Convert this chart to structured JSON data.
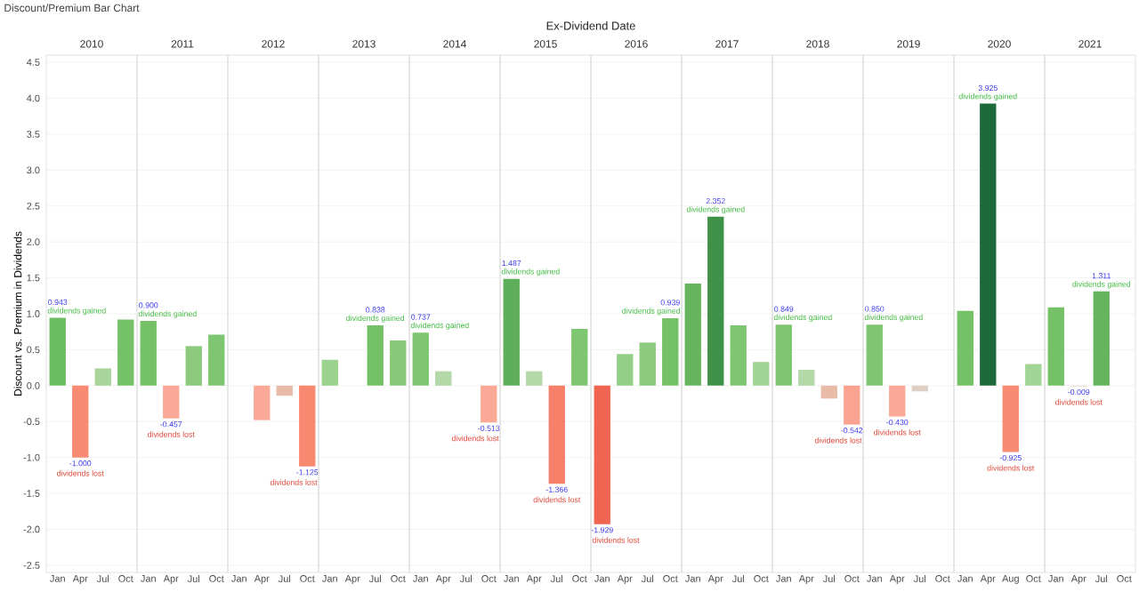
{
  "chart_data": [
    {
      "type": "bar",
      "title": "2010",
      "ylabel": "Discount vs. Premium in Dividends",
      "annotations": [
        "Discount/Premium Bar Chart",
        "Ex-Dividend Date",
        {
          "text": "dividends gained",
          "x": "Jan",
          "y": 0.943
        },
        {
          "text": "dividends lost",
          "x": "Apr",
          "y": -1.0
        }
      ],
      "categories": [
        "Jan",
        "Apr",
        "Jul",
        "Oct"
      ],
      "values": [
        0.943,
        -1.0,
        0.24,
        0.92
      ],
      "colors": [
        "#6dbd62",
        "#f98b74",
        "#a9d59d",
        "#74c167"
      ],
      "value_labels": [
        "0.943",
        "-1.000",
        null,
        null
      ],
      "ylim": [
        -2.6,
        4.6
      ],
      "yticks": [
        {
          "value": -2.5,
          "label": "-2.5"
        },
        {
          "value": -2,
          "label": "-2.0"
        },
        {
          "value": -1.5,
          "label": "-1.5"
        },
        {
          "value": -1,
          "label": "-1.0"
        },
        {
          "value": -0.5,
          "label": "-0.5"
        },
        {
          "value": 0,
          "label": "0.0"
        },
        {
          "value": 0.5,
          "label": "0.5"
        },
        {
          "value": 1,
          "label": "1.0"
        },
        {
          "value": 1.5,
          "label": "1.5"
        },
        {
          "value": 2,
          "label": "2.0"
        },
        {
          "value": 2.5,
          "label": "2.5"
        },
        {
          "value": 3,
          "label": "3.0"
        },
        {
          "value": 3.5,
          "label": "3.5"
        },
        {
          "value": 4,
          "label": "4.0"
        },
        {
          "value": 4.5,
          "label": "4.5"
        }
      ],
      "grid": "y"
    },
    {
      "type": "bar",
      "title": "2011",
      "annotations": [
        {
          "text": "dividends gained",
          "x": "Jan",
          "y": 0.9
        },
        {
          "text": "dividends lost",
          "x": "Apr",
          "y": -0.457
        }
      ],
      "categories": [
        "Jan",
        "Apr",
        "Jul",
        "Oct"
      ],
      "values": [
        0.9,
        -0.457,
        0.55,
        0.71
      ],
      "colors": [
        "#74c167",
        "#fba897",
        "#8ccb7e",
        "#7fc672"
      ],
      "value_labels": [
        "0.900",
        "-0.457",
        null,
        null
      ],
      "ylim": [
        -2.6,
        4.6
      ],
      "yticks": [
        -2.5,
        -2,
        -1.5,
        -1,
        -0.5,
        0,
        0.5,
        1,
        1.5,
        2,
        2.5,
        3,
        3.5,
        4,
        4.5
      ],
      "tick_labels": "x",
      "grid": "y"
    },
    {
      "type": "bar",
      "title": "2012",
      "annotations": [
        {
          "text": "dividends lost",
          "x": "Oct",
          "y": -1.125
        }
      ],
      "categories": [
        "Jan",
        "Apr",
        "Jul",
        "Oct"
      ],
      "values": [
        null,
        -0.48,
        -0.14,
        -1.125
      ],
      "colors": [
        "#e6d3c8",
        "#fba897",
        "#e8bba8",
        "#f98870"
      ],
      "value_labels": [
        null,
        null,
        null,
        "-1.125"
      ],
      "ylim": [
        -2.6,
        4.6
      ],
      "yticks": [
        -2.5,
        -2,
        -1.5,
        -1,
        -0.5,
        0,
        0.5,
        1,
        1.5,
        2,
        2.5,
        3,
        3.5,
        4,
        4.5
      ],
      "tick_labels": "x",
      "grid": "y"
    },
    {
      "type": "bar",
      "title": "2013",
      "annotations": [
        {
          "text": "dividends gained",
          "x": "Jul",
          "y": 0.838
        }
      ],
      "categories": [
        "Jan",
        "Apr",
        "Jul",
        "Oct"
      ],
      "values": [
        0.36,
        null,
        0.838,
        0.63
      ],
      "colors": [
        "#9ad28e",
        "#d8ead2",
        "#74c167",
        "#86c979"
      ],
      "value_labels": [
        null,
        null,
        "0.838",
        null
      ],
      "ylim": [
        -2.6,
        4.6
      ],
      "yticks": [
        -2.5,
        -2,
        -1.5,
        -1,
        -0.5,
        0,
        0.5,
        1,
        1.5,
        2,
        2.5,
        3,
        3.5,
        4,
        4.5
      ],
      "tick_labels": "x",
      "grid": "y"
    },
    {
      "type": "bar",
      "title": "2014",
      "annotations": [
        {
          "text": "dividends gained",
          "x": "Jan",
          "y": 0.737
        },
        {
          "text": "dividends lost",
          "x": "Oct",
          "y": -0.513
        }
      ],
      "categories": [
        "Jan",
        "Apr",
        "Jul",
        "Oct"
      ],
      "values": [
        0.737,
        0.2,
        null,
        -0.513
      ],
      "colors": [
        "#7fc672",
        "#b2d9a7",
        "#c9e3c0",
        "#fba897"
      ],
      "value_labels": [
        "0.737",
        null,
        null,
        "-0.513"
      ],
      "ylim": [
        -2.6,
        4.6
      ],
      "yticks": [
        -2.5,
        -2,
        -1.5,
        -1,
        -0.5,
        0,
        0.5,
        1,
        1.5,
        2,
        2.5,
        3,
        3.5,
        4,
        4.5
      ],
      "tick_labels": "x",
      "grid": "y"
    },
    {
      "type": "bar",
      "title": "2015",
      "annotations": [
        {
          "text": "dividends gained",
          "x": "Jan",
          "y": 1.487
        },
        {
          "text": "dividends lost",
          "x": "Jul",
          "y": -1.366
        }
      ],
      "categories": [
        "Jan",
        "Apr",
        "Jul",
        "Oct"
      ],
      "values": [
        1.487,
        0.2,
        -1.366,
        0.79
      ],
      "colors": [
        "#5fae5a",
        "#b2d9a7",
        "#f7806a",
        "#7fc672"
      ],
      "value_labels": [
        "1.487",
        null,
        "-1.366",
        null
      ],
      "ylim": [
        -2.6,
        4.6
      ],
      "yticks": [
        -2.5,
        -2,
        -1.5,
        -1,
        -0.5,
        0,
        0.5,
        1,
        1.5,
        2,
        2.5,
        3,
        3.5,
        4,
        4.5
      ],
      "tick_labels": "x",
      "grid": "y"
    },
    {
      "type": "bar",
      "title": "2016",
      "annotations": [
        {
          "text": "dividends lost",
          "x": "Jan",
          "y": -1.929
        },
        {
          "text": "dividends gained",
          "x": "Oct",
          "y": 0.939
        }
      ],
      "categories": [
        "Jan",
        "Apr",
        "Jul",
        "Oct"
      ],
      "values": [
        -1.929,
        0.44,
        0.6,
        0.939
      ],
      "colors": [
        "#f06452",
        "#94cf88",
        "#8ccb7e",
        "#74c167"
      ],
      "value_labels": [
        "-1.929",
        null,
        null,
        "0.939"
      ],
      "ylim": [
        -2.6,
        4.6
      ],
      "yticks": [
        -2.5,
        -2,
        -1.5,
        -1,
        -0.5,
        0,
        0.5,
        1,
        1.5,
        2,
        2.5,
        3,
        3.5,
        4,
        4.5
      ],
      "tick_labels": "x",
      "grid": "y"
    },
    {
      "type": "bar",
      "title": "2017",
      "annotations": [
        {
          "text": "dividends gained",
          "x": "Apr",
          "y": 2.352
        }
      ],
      "categories": [
        "Jan",
        "Apr",
        "Jul",
        "Oct"
      ],
      "values": [
        1.42,
        2.352,
        0.84,
        0.33
      ],
      "colors": [
        "#66b55e",
        "#3f9247",
        "#7fc672",
        "#a1d495"
      ],
      "value_labels": [
        null,
        "2.352",
        null,
        null
      ],
      "ylim": [
        -2.6,
        4.6
      ],
      "yticks": [
        -2.5,
        -2,
        -1.5,
        -1,
        -0.5,
        0,
        0.5,
        1,
        1.5,
        2,
        2.5,
        3,
        3.5,
        4,
        4.5
      ],
      "tick_labels": "x",
      "grid": "y"
    },
    {
      "type": "bar",
      "title": "2018",
      "annotations": [
        {
          "text": "dividends gained",
          "x": "Jan",
          "y": 0.849
        },
        {
          "text": "dividends lost",
          "x": "Oct",
          "y": -0.542
        }
      ],
      "categories": [
        "Jan",
        "Apr",
        "Jul",
        "Oct"
      ],
      "values": [
        0.849,
        0.22,
        -0.18,
        -0.542
      ],
      "colors": [
        "#7fc672",
        "#b2d9a7",
        "#e8bba8",
        "#fba391"
      ],
      "value_labels": [
        "0.849",
        null,
        null,
        "-0.542"
      ],
      "ylim": [
        -2.6,
        4.6
      ],
      "yticks": [
        -2.5,
        -2,
        -1.5,
        -1,
        -0.5,
        0,
        0.5,
        1,
        1.5,
        2,
        2.5,
        3,
        3.5,
        4,
        4.5
      ],
      "tick_labels": "x",
      "grid": "y"
    },
    {
      "type": "bar",
      "title": "2019",
      "annotations": [
        {
          "text": "dividends gained",
          "x": "Jan",
          "y": 0.85
        },
        {
          "text": "dividends lost",
          "x": "Apr",
          "y": -0.43
        }
      ],
      "categories": [
        "Jan",
        "Apr",
        "Jul",
        "Oct"
      ],
      "values": [
        0.85,
        -0.43,
        -0.08,
        null
      ],
      "colors": [
        "#7fc672",
        "#fba897",
        "#e0cfc3",
        "#cde6c5"
      ],
      "value_labels": [
        "0.850",
        "-0.430",
        null,
        null
      ],
      "ylim": [
        -2.6,
        4.6
      ],
      "yticks": [
        -2.5,
        -2,
        -1.5,
        -1,
        -0.5,
        0,
        0.5,
        1,
        1.5,
        2,
        2.5,
        3,
        3.5,
        4,
        4.5
      ],
      "tick_labels": "x",
      "grid": "y"
    },
    {
      "type": "bar",
      "title": "2020",
      "annotations": [
        {
          "text": "dividends gained",
          "x": "Apr",
          "y": 3.925
        },
        {
          "text": "dividends lost",
          "x": "Aug",
          "y": -0.925
        }
      ],
      "categories": [
        "Jan",
        "Apr",
        "Aug",
        "Oct"
      ],
      "values": [
        1.04,
        3.925,
        -0.925,
        0.3
      ],
      "colors": [
        "#74c167",
        "#1f6a3a",
        "#f98b74",
        "#a1d495"
      ],
      "value_labels": [
        null,
        "3.925",
        "-0.925",
        null
      ],
      "ylim": [
        -2.6,
        4.6
      ],
      "yticks": [
        -2.5,
        -2,
        -1.5,
        -1,
        -0.5,
        0,
        0.5,
        1,
        1.5,
        2,
        2.5,
        3,
        3.5,
        4,
        4.5
      ],
      "tick_labels": "x",
      "grid": "y"
    },
    {
      "type": "bar",
      "title": "2021",
      "annotations": [
        {
          "text": "dividends lost",
          "x": "Apr",
          "y": -0.009
        },
        {
          "text": "dividends gained",
          "x": "Jul",
          "y": 1.311
        }
      ],
      "categories": [
        "Jan",
        "Apr",
        "Jul",
        "Oct"
      ],
      "values": [
        1.09,
        -0.009,
        1.311,
        null
      ],
      "colors": [
        "#74c167",
        "#e6d3c8",
        "#66b55e",
        null
      ],
      "value_labels": [
        null,
        "-0.009",
        "1.311",
        null
      ],
      "ylim": [
        -2.6,
        4.6
      ],
      "yticks": [
        -2.5,
        -2,
        -1.5,
        -1,
        -0.5,
        0,
        0.5,
        1,
        1.5,
        2,
        2.5,
        3,
        3.5,
        4,
        4.5
      ],
      "tick_labels": "x",
      "grid": "y"
    }
  ]
}
